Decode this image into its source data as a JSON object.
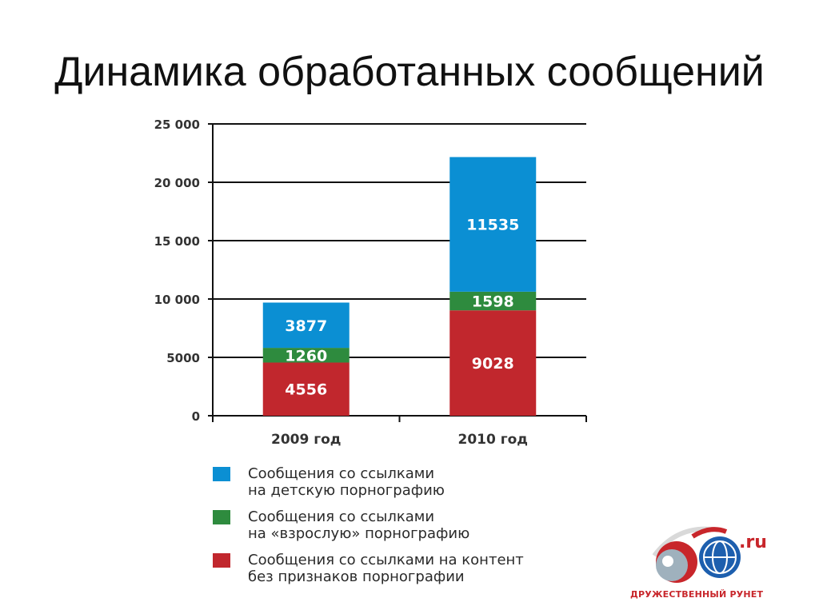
{
  "title": "Динамика обработанных сообщений",
  "chart_data": {
    "type": "stacked_bar",
    "categories": [
      "2009 год",
      "2010 год"
    ],
    "series": [
      {
        "name": "Сообщения со ссылками на контент без признаков порнографии",
        "color": "#c1272d",
        "values": [
          4556,
          9028
        ]
      },
      {
        "name": "Сообщения со ссылками на «взрослую» порнографию",
        "color": "#2e8b3e",
        "values": [
          1260,
          1598
        ]
      },
      {
        "name": "Сообщения со ссылками на детскую порнографию",
        "color": "#0b8fd3",
        "values": [
          3877,
          11535
        ]
      }
    ],
    "ylim": [
      0,
      25000
    ],
    "yticks": [
      0,
      5000,
      10000,
      15000,
      20000,
      25000
    ],
    "ytick_labels": [
      "0",
      "5000",
      "10 000",
      "15 000",
      "20 000",
      "25 000"
    ],
    "grid": true,
    "legend_position": "bottom"
  },
  "legend": [
    {
      "label": "Сообщения со ссылками\nна детскую порнографию",
      "color": "#0b8fd3"
    },
    {
      "label": "Сообщения со ссылками\nна «взрослую» порнографию",
      "color": "#2e8b3e"
    },
    {
      "label": "Сообщения со ссылками на контент\nбез признаков порнографии",
      "color": "#c1272d"
    }
  ],
  "logo": {
    "text": "ДРУЖЕСТВЕННЫЙ РУНЕТ",
    "domain": ".ru"
  }
}
